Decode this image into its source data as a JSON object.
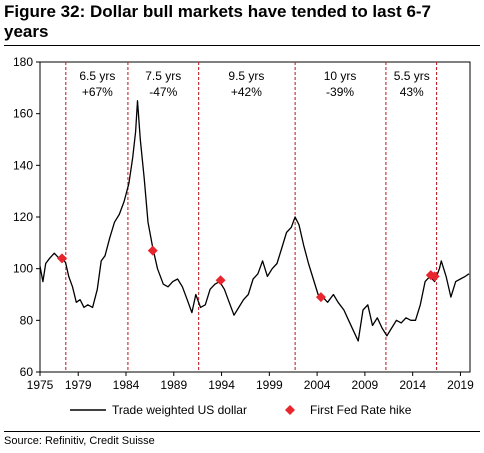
{
  "title": "Figure 32: Dollar bull markets have tended to last 6-7 years",
  "source": "Source: Refinitiv, Credit Suisse",
  "chart_data": {
    "type": "line",
    "title": "Figure 32: Dollar bull markets have tended to last 6-7 years",
    "xlabel": "",
    "ylabel": "",
    "xlim": [
      1975,
      2020
    ],
    "ylim": [
      60,
      180
    ],
    "x_ticks": [
      "1975",
      "1979",
      "1984",
      "1989",
      "1994",
      "1999",
      "2004",
      "2009",
      "2014",
      "2019"
    ],
    "y_ticks": [
      "60",
      "80",
      "100",
      "120",
      "140",
      "160",
      "180"
    ],
    "grid": false,
    "legend_position": "bottom",
    "series": [
      {
        "name": "Trade weighted US dollar",
        "color": "#000000",
        "points": [
          [
            1975.0,
            101
          ],
          [
            1975.3,
            95
          ],
          [
            1975.6,
            102
          ],
          [
            1976.0,
            104
          ],
          [
            1976.5,
            106
          ],
          [
            1977.0,
            104
          ],
          [
            1977.3,
            105
          ],
          [
            1977.7,
            102
          ],
          [
            1978.0,
            97
          ],
          [
            1978.4,
            93
          ],
          [
            1978.8,
            87
          ],
          [
            1979.2,
            88
          ],
          [
            1979.6,
            85
          ],
          [
            1980.0,
            86
          ],
          [
            1980.5,
            85
          ],
          [
            1981.0,
            92
          ],
          [
            1981.4,
            103
          ],
          [
            1981.8,
            105
          ],
          [
            1982.3,
            112
          ],
          [
            1982.8,
            118
          ],
          [
            1983.3,
            121
          ],
          [
            1983.8,
            126
          ],
          [
            1984.3,
            133
          ],
          [
            1984.7,
            143
          ],
          [
            1985.0,
            153
          ],
          [
            1985.2,
            165
          ],
          [
            1985.5,
            150
          ],
          [
            1985.9,
            135
          ],
          [
            1986.3,
            118
          ],
          [
            1986.8,
            108
          ],
          [
            1987.3,
            100
          ],
          [
            1987.9,
            94
          ],
          [
            1988.4,
            93
          ],
          [
            1988.9,
            95
          ],
          [
            1989.4,
            96
          ],
          [
            1989.9,
            93
          ],
          [
            1990.4,
            88
          ],
          [
            1990.9,
            83
          ],
          [
            1991.3,
            90
          ],
          [
            1991.8,
            85
          ],
          [
            1992.3,
            86
          ],
          [
            1992.8,
            92
          ],
          [
            1993.3,
            94
          ],
          [
            1993.8,
            95
          ],
          [
            1994.3,
            92
          ],
          [
            1994.8,
            87
          ],
          [
            1995.3,
            82
          ],
          [
            1995.8,
            85
          ],
          [
            1996.3,
            88
          ],
          [
            1996.8,
            90
          ],
          [
            1997.3,
            96
          ],
          [
            1997.8,
            98
          ],
          [
            1998.3,
            103
          ],
          [
            1998.8,
            97
          ],
          [
            1999.3,
            100
          ],
          [
            1999.8,
            102
          ],
          [
            2000.3,
            108
          ],
          [
            2000.8,
            114
          ],
          [
            2001.3,
            116
          ],
          [
            2001.7,
            120
          ],
          [
            2002.1,
            117
          ],
          [
            2002.6,
            109
          ],
          [
            2003.1,
            102
          ],
          [
            2003.6,
            96
          ],
          [
            2004.1,
            90
          ],
          [
            2004.6,
            89
          ],
          [
            2005.1,
            87
          ],
          [
            2005.7,
            90
          ],
          [
            2006.2,
            87
          ],
          [
            2006.8,
            84
          ],
          [
            2007.3,
            80
          ],
          [
            2007.8,
            76
          ],
          [
            2008.3,
            72
          ],
          [
            2008.8,
            84
          ],
          [
            2009.3,
            86
          ],
          [
            2009.8,
            78
          ],
          [
            2010.3,
            81
          ],
          [
            2010.8,
            77
          ],
          [
            2011.3,
            74
          ],
          [
            2011.8,
            77
          ],
          [
            2012.3,
            80
          ],
          [
            2012.8,
            79
          ],
          [
            2013.3,
            81
          ],
          [
            2013.8,
            80
          ],
          [
            2014.3,
            80
          ],
          [
            2014.8,
            86
          ],
          [
            2015.3,
            95
          ],
          [
            2015.8,
            97
          ],
          [
            2016.3,
            95
          ],
          [
            2016.8,
            100
          ],
          [
            2017.0,
            103
          ],
          [
            2017.5,
            97
          ],
          [
            2018.0,
            89
          ],
          [
            2018.5,
            95
          ],
          [
            2019.0,
            96
          ],
          [
            2019.5,
            97
          ],
          [
            2019.9,
            98
          ]
        ]
      },
      {
        "name": "First Fed Rate hike",
        "type": "scatter",
        "marker": "diamond",
        "color": "#e8262d",
        "points": [
          [
            1977.3,
            104
          ],
          [
            1986.8,
            107
          ],
          [
            1993.9,
            95.5
          ],
          [
            2004.4,
            89
          ],
          [
            2015.9,
            97.5
          ],
          [
            2016.3,
            97
          ]
        ]
      }
    ],
    "cycle_boundaries": [
      1977.7,
      1984.2,
      1991.6,
      2001.7,
      2011.2,
      2016.5
    ],
    "annotations": [
      {
        "x": 1981.0,
        "lines": [
          "6.5 yrs",
          "+67%"
        ]
      },
      {
        "x": 1987.9,
        "lines": [
          "7.5 yrs",
          "-47%"
        ]
      },
      {
        "x": 1996.6,
        "lines": [
          "9.5 yrs",
          "+42%"
        ]
      },
      {
        "x": 2006.4,
        "lines": [
          "10 yrs",
          "-39%"
        ]
      },
      {
        "x": 2013.9,
        "lines": [
          "5.5 yrs",
          "43%"
        ]
      }
    ]
  }
}
